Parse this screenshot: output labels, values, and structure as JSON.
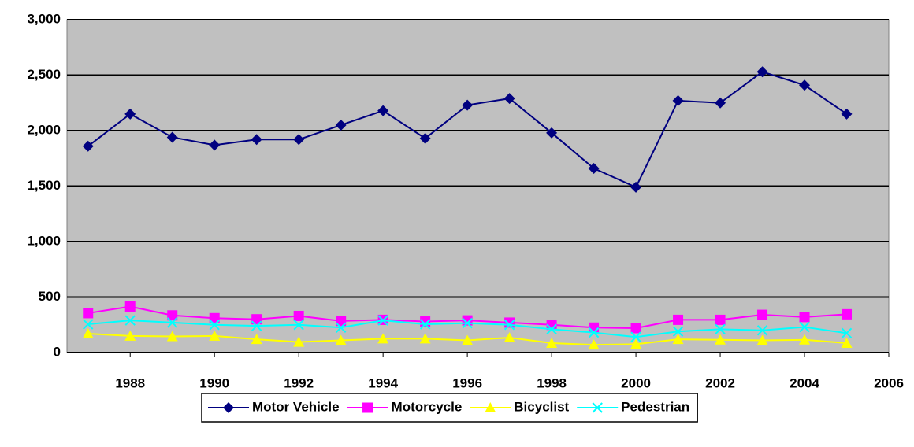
{
  "chart_data": {
    "type": "line",
    "x": [
      1987,
      1988,
      1989,
      1990,
      1991,
      1992,
      1993,
      1994,
      1995,
      1996,
      1997,
      1998,
      1999,
      2000,
      2001,
      2002,
      2003,
      2004,
      2005
    ],
    "xlim": [
      1986.5,
      2006
    ],
    "xticks": [
      1988,
      1990,
      1992,
      1994,
      1996,
      1998,
      2000,
      2002,
      2004,
      2006
    ],
    "ylim": [
      0,
      3000
    ],
    "yticks": [
      0,
      500,
      {
        "value": 1000,
        "label": "1,000"
      },
      {
        "value": 1500,
        "label": "1,500"
      },
      {
        "value": 2000,
        "label": "2,000"
      },
      {
        "value": 2500,
        "label": "2,500"
      },
      {
        "value": 3000,
        "label": "3,000"
      }
    ],
    "grid": true,
    "legend": "bottom",
    "series": [
      {
        "name": "Motor Vehicle",
        "color": "#000080",
        "marker": "diamond",
        "values": [
          1860,
          2150,
          1940,
          1870,
          1920,
          1920,
          2050,
          2180,
          1930,
          2230,
          2290,
          1980,
          1660,
          1490,
          2270,
          2250,
          2530,
          2410,
          2150
        ]
      },
      {
        "name": "Motorcycle",
        "color": "#ff00ff",
        "marker": "square",
        "values": [
          355,
          415,
          335,
          310,
          300,
          330,
          285,
          295,
          280,
          290,
          270,
          250,
          225,
          220,
          295,
          295,
          340,
          320,
          345
        ]
      },
      {
        "name": "Bicyclist",
        "color": "#ffff00",
        "marker": "triangle",
        "values": [
          170,
          150,
          145,
          150,
          120,
          95,
          110,
          125,
          125,
          110,
          135,
          85,
          70,
          75,
          120,
          115,
          110,
          115,
          85
        ]
      },
      {
        "name": "Pedestrian",
        "color": "#00ffff",
        "marker": "x",
        "values": [
          255,
          290,
          270,
          250,
          240,
          250,
          225,
          290,
          255,
          265,
          250,
          210,
          180,
          140,
          190,
          210,
          200,
          230,
          175
        ]
      }
    ]
  }
}
